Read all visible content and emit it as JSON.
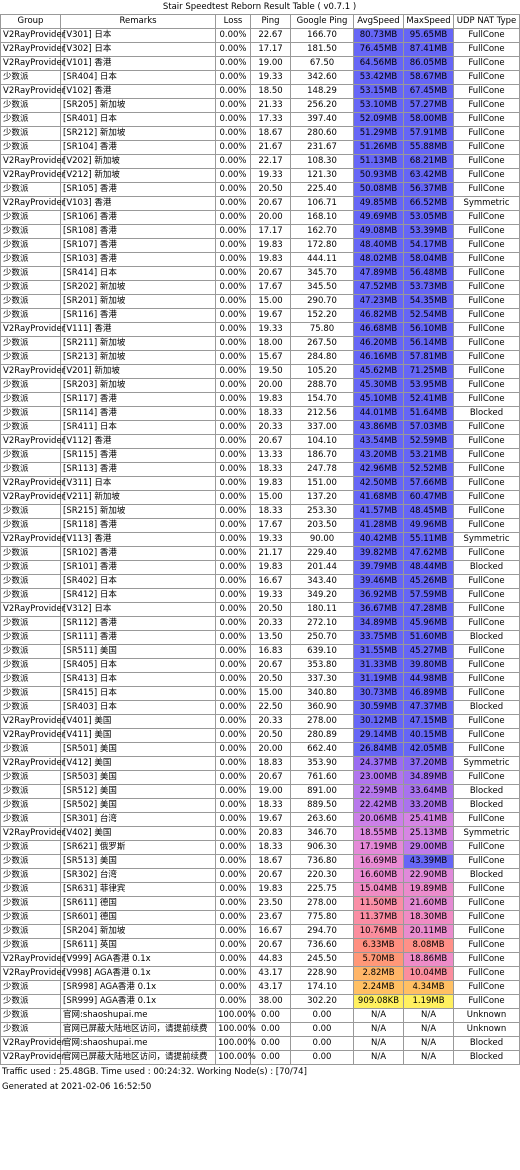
{
  "table": {
    "title": "Stair Speedtest Reborn Result Table ( v0.7.1 )",
    "header": [
      "Group",
      "Remarks",
      "Loss",
      "Ping",
      "Google Ping",
      "AvgSpeed",
      "MaxSpeed",
      "UDP NAT Type"
    ],
    "rows": [
      [
        "V2RayProvider",
        "[V301] 日本",
        "0.00%",
        "22.67",
        "166.70",
        "80.73MB",
        "95.65MB",
        "FullCone"
      ],
      [
        "V2RayProvider",
        "[V302] 日本",
        "0.00%",
        "17.17",
        "181.50",
        "76.45MB",
        "87.41MB",
        "FullCone"
      ],
      [
        "V2RayProvider",
        "[V101] 香港",
        "0.00%",
        "19.00",
        "67.50",
        "64.56MB",
        "86.05MB",
        "FullCone"
      ],
      [
        "少数派",
        "[SR404] 日本",
        "0.00%",
        "19.33",
        "342.60",
        "53.42MB",
        "58.67MB",
        "FullCone"
      ],
      [
        "V2RayProvider",
        "[V102] 香港",
        "0.00%",
        "18.50",
        "148.29",
        "53.15MB",
        "67.45MB",
        "FullCone"
      ],
      [
        "少数派",
        "[SR205] 新加坡",
        "0.00%",
        "21.33",
        "256.20",
        "53.10MB",
        "57.27MB",
        "FullCone"
      ],
      [
        "少数派",
        "[SR401] 日本",
        "0.00%",
        "17.33",
        "397.40",
        "52.09MB",
        "58.00MB",
        "FullCone"
      ],
      [
        "少数派",
        "[SR212] 新加坡",
        "0.00%",
        "18.67",
        "280.60",
        "51.29MB",
        "57.91MB",
        "FullCone"
      ],
      [
        "少数派",
        "[SR104] 香港",
        "0.00%",
        "21.67",
        "231.67",
        "51.26MB",
        "55.88MB",
        "FullCone"
      ],
      [
        "V2RayProvider",
        "[V202] 新加坡",
        "0.00%",
        "22.17",
        "108.30",
        "51.13MB",
        "68.21MB",
        "FullCone"
      ],
      [
        "V2RayProvider",
        "[V212] 新加坡",
        "0.00%",
        "19.33",
        "121.30",
        "50.93MB",
        "63.42MB",
        "FullCone"
      ],
      [
        "少数派",
        "[SR105] 香港",
        "0.00%",
        "20.50",
        "225.40",
        "50.08MB",
        "56.37MB",
        "FullCone"
      ],
      [
        "V2RayProvider",
        "[V103] 香港",
        "0.00%",
        "20.67",
        "106.71",
        "49.85MB",
        "66.52MB",
        "Symmetric"
      ],
      [
        "少数派",
        "[SR106] 香港",
        "0.00%",
        "20.00",
        "168.10",
        "49.69MB",
        "53.05MB",
        "FullCone"
      ],
      [
        "少数派",
        "[SR108] 香港",
        "0.00%",
        "17.17",
        "162.70",
        "49.08MB",
        "53.39MB",
        "FullCone"
      ],
      [
        "少数派",
        "[SR107] 香港",
        "0.00%",
        "19.83",
        "172.80",
        "48.40MB",
        "54.17MB",
        "FullCone"
      ],
      [
        "少数派",
        "[SR103] 香港",
        "0.00%",
        "19.83",
        "444.11",
        "48.02MB",
        "58.04MB",
        "FullCone"
      ],
      [
        "少数派",
        "[SR414] 日本",
        "0.00%",
        "20.67",
        "345.70",
        "47.89MB",
        "56.48MB",
        "FullCone"
      ],
      [
        "少数派",
        "[SR202] 新加坡",
        "0.00%",
        "17.67",
        "345.50",
        "47.52MB",
        "53.73MB",
        "FullCone"
      ],
      [
        "少数派",
        "[SR201] 新加坡",
        "0.00%",
        "15.00",
        "290.70",
        "47.23MB",
        "54.35MB",
        "FullCone"
      ],
      [
        "少数派",
        "[SR116] 香港",
        "0.00%",
        "19.67",
        "152.20",
        "46.82MB",
        "52.54MB",
        "FullCone"
      ],
      [
        "V2RayProvider",
        "[V111] 香港",
        "0.00%",
        "19.33",
        "75.80",
        "46.68MB",
        "56.10MB",
        "FullCone"
      ],
      [
        "少数派",
        "[SR211] 新加坡",
        "0.00%",
        "18.00",
        "267.50",
        "46.20MB",
        "56.14MB",
        "FullCone"
      ],
      [
        "少数派",
        "[SR213] 新加坡",
        "0.00%",
        "15.67",
        "284.80",
        "46.16MB",
        "57.81MB",
        "FullCone"
      ],
      [
        "V2RayProvider",
        "[V201] 新加坡",
        "0.00%",
        "19.50",
        "105.20",
        "45.62MB",
        "71.25MB",
        "FullCone"
      ],
      [
        "少数派",
        "[SR203] 新加坡",
        "0.00%",
        "20.00",
        "288.70",
        "45.30MB",
        "53.95MB",
        "FullCone"
      ],
      [
        "少数派",
        "[SR117] 香港",
        "0.00%",
        "19.83",
        "154.70",
        "45.10MB",
        "52.41MB",
        "FullCone"
      ],
      [
        "少数派",
        "[SR114] 香港",
        "0.00%",
        "18.33",
        "212.56",
        "44.01MB",
        "51.64MB",
        "Blocked"
      ],
      [
        "少数派",
        "[SR411] 日本",
        "0.00%",
        "20.33",
        "337.00",
        "43.86MB",
        "57.03MB",
        "FullCone"
      ],
      [
        "V2RayProvider",
        "[V112] 香港",
        "0.00%",
        "20.67",
        "104.10",
        "43.54MB",
        "52.59MB",
        "FullCone"
      ],
      [
        "少数派",
        "[SR115] 香港",
        "0.00%",
        "13.33",
        "186.70",
        "43.20MB",
        "53.21MB",
        "FullCone"
      ],
      [
        "少数派",
        "[SR113] 香港",
        "0.00%",
        "18.33",
        "247.78",
        "42.96MB",
        "52.52MB",
        "FullCone"
      ],
      [
        "V2RayProvider",
        "[V311] 日本",
        "0.00%",
        "19.83",
        "151.00",
        "42.50MB",
        "57.66MB",
        "FullCone"
      ],
      [
        "V2RayProvider",
        "[V211] 新加坡",
        "0.00%",
        "15.00",
        "137.20",
        "41.68MB",
        "60.47MB",
        "FullCone"
      ],
      [
        "少数派",
        "[SR215] 新加坡",
        "0.00%",
        "18.33",
        "253.30",
        "41.57MB",
        "48.45MB",
        "FullCone"
      ],
      [
        "少数派",
        "[SR118] 香港",
        "0.00%",
        "17.67",
        "203.50",
        "41.28MB",
        "49.96MB",
        "FullCone"
      ],
      [
        "V2RayProvider",
        "[V113] 香港",
        "0.00%",
        "19.33",
        "90.00",
        "40.42MB",
        "55.11MB",
        "Symmetric"
      ],
      [
        "少数派",
        "[SR102] 香港",
        "0.00%",
        "21.17",
        "229.40",
        "39.82MB",
        "47.62MB",
        "FullCone"
      ],
      [
        "少数派",
        "[SR101] 香港",
        "0.00%",
        "19.83",
        "201.44",
        "39.79MB",
        "48.44MB",
        "Blocked"
      ],
      [
        "少数派",
        "[SR402] 日本",
        "0.00%",
        "16.67",
        "343.40",
        "39.46MB",
        "45.26MB",
        "FullCone"
      ],
      [
        "少数派",
        "[SR412] 日本",
        "0.00%",
        "19.33",
        "349.20",
        "36.92MB",
        "57.59MB",
        "FullCone"
      ],
      [
        "V2RayProvider",
        "[V312] 日本",
        "0.00%",
        "20.50",
        "180.11",
        "36.67MB",
        "47.28MB",
        "FullCone"
      ],
      [
        "少数派",
        "[SR112] 香港",
        "0.00%",
        "20.33",
        "272.10",
        "34.89MB",
        "45.96MB",
        "FullCone"
      ],
      [
        "少数派",
        "[SR111] 香港",
        "0.00%",
        "13.50",
        "250.70",
        "33.75MB",
        "51.60MB",
        "Blocked"
      ],
      [
        "少数派",
        "[SR511] 美国",
        "0.00%",
        "16.83",
        "639.10",
        "31.55MB",
        "45.27MB",
        "FullCone"
      ],
      [
        "少数派",
        "[SR405] 日本",
        "0.00%",
        "20.67",
        "353.80",
        "31.33MB",
        "39.80MB",
        "FullCone"
      ],
      [
        "少数派",
        "[SR413] 日本",
        "0.00%",
        "20.50",
        "337.30",
        "31.19MB",
        "44.98MB",
        "FullCone"
      ],
      [
        "少数派",
        "[SR415] 日本",
        "0.00%",
        "15.00",
        "340.80",
        "30.73MB",
        "46.89MB",
        "FullCone"
      ],
      [
        "少数派",
        "[SR403] 日本",
        "0.00%",
        "22.50",
        "360.90",
        "30.59MB",
        "47.37MB",
        "Blocked"
      ],
      [
        "V2RayProvider",
        "[V401] 美国",
        "0.00%",
        "20.33",
        "278.00",
        "30.12MB",
        "47.15MB",
        "FullCone"
      ],
      [
        "V2RayProvider",
        "[V411] 美国",
        "0.00%",
        "20.50",
        "280.89",
        "29.14MB",
        "40.15MB",
        "FullCone"
      ],
      [
        "少数派",
        "[SR501] 美国",
        "0.00%",
        "20.00",
        "662.40",
        "26.84MB",
        "42.05MB",
        "FullCone"
      ],
      [
        "V2RayProvider",
        "[V412] 美国",
        "0.00%",
        "18.83",
        "353.90",
        "24.37MB",
        "37.20MB",
        "Symmetric"
      ],
      [
        "少数派",
        "[SR503] 美国",
        "0.00%",
        "20.67",
        "761.60",
        "23.00MB",
        "34.89MB",
        "FullCone"
      ],
      [
        "少数派",
        "[SR512] 美国",
        "0.00%",
        "19.00",
        "891.00",
        "22.59MB",
        "33.64MB",
        "Blocked"
      ],
      [
        "少数派",
        "[SR502] 美国",
        "0.00%",
        "18.33",
        "889.50",
        "22.42MB",
        "33.20MB",
        "Blocked"
      ],
      [
        "少数派",
        "[SR301] 台湾",
        "0.00%",
        "19.67",
        "263.60",
        "20.06MB",
        "25.41MB",
        "FullCone"
      ],
      [
        "V2RayProvider",
        "[V402] 美国",
        "0.00%",
        "20.83",
        "346.70",
        "18.55MB",
        "25.13MB",
        "Symmetric"
      ],
      [
        "少数派",
        "[SR621] 俄罗斯",
        "0.00%",
        "18.33",
        "906.30",
        "17.19MB",
        "29.00MB",
        "FullCone"
      ],
      [
        "少数派",
        "[SR513] 美国",
        "0.00%",
        "18.67",
        "736.80",
        "16.69MB",
        "43.39MB",
        "FullCone"
      ],
      [
        "少数派",
        "[SR302] 台湾",
        "0.00%",
        "20.67",
        "220.30",
        "16.60MB",
        "22.90MB",
        "Blocked"
      ],
      [
        "少数派",
        "[SR631] 菲律宾",
        "0.00%",
        "19.83",
        "225.75",
        "15.04MB",
        "19.89MB",
        "FullCone"
      ],
      [
        "少数派",
        "[SR611] 德国",
        "0.00%",
        "23.50",
        "278.00",
        "11.50MB",
        "21.60MB",
        "FullCone"
      ],
      [
        "少数派",
        "[SR601] 德国",
        "0.00%",
        "23.67",
        "775.80",
        "11.37MB",
        "18.30MB",
        "FullCone"
      ],
      [
        "少数派",
        "[SR204] 新加坡",
        "0.00%",
        "16.67",
        "294.70",
        "10.76MB",
        "20.11MB",
        "FullCone"
      ],
      [
        "少数派",
        "[SR611] 英国",
        "0.00%",
        "20.67",
        "736.60",
        "6.33MB",
        "8.08MB",
        "FullCone"
      ],
      [
        "V2RayProvider",
        "[V999] AGA香港 0.1x",
        "0.00%",
        "44.83",
        "245.50",
        "5.70MB",
        "18.86MB",
        "FullCone"
      ],
      [
        "V2RayProvider",
        "[V998] AGA香港 0.1x",
        "0.00%",
        "43.17",
        "228.90",
        "2.82MB",
        "10.04MB",
        "FullCone"
      ],
      [
        "少数派",
        "[SR998] AGA香港 0.1x",
        "0.00%",
        "43.17",
        "174.10",
        "2.24MB",
        "4.34MB",
        "FullCone"
      ],
      [
        "少数派",
        "[SR999] AGA香港 0.1x",
        "0.00%",
        "38.00",
        "302.20",
        "909.08KB",
        "1.19MB",
        "FullCone"
      ],
      [
        "少数派",
        "官网:shaoshupai.me",
        "100.00%",
        "0.00",
        "0.00",
        "N/A",
        "N/A",
        "Unknown"
      ],
      [
        "少数派",
        "官网已屏蔽大陆地区访问，请提前续费",
        "100.00%",
        "0.00",
        "0.00",
        "N/A",
        "N/A",
        "Unknown"
      ],
      [
        "V2RayProvider",
        "官网:shaoshupai.me",
        "100.00%",
        "0.00",
        "0.00",
        "N/A",
        "N/A",
        "Blocked"
      ],
      [
        "V2RayProvider",
        "官网已屏蔽大陆地区访问，请提前续费",
        "100.00%",
        "0.00",
        "0.00",
        "N/A",
        "N/A",
        "Blocked"
      ]
    ],
    "speed_colors": [
      [
        "#6666f6",
        "#6666f6"
      ],
      [
        "#6666f6",
        "#6666f6"
      ],
      [
        "#6666f6",
        "#6666f6"
      ],
      [
        "#6666f6",
        "#6666f6"
      ],
      [
        "#6666f6",
        "#6666f6"
      ],
      [
        "#6666f6",
        "#6666f6"
      ],
      [
        "#6666f6",
        "#6666f6"
      ],
      [
        "#6666f6",
        "#6666f6"
      ],
      [
        "#6666f6",
        "#6666f6"
      ],
      [
        "#6666f6",
        "#6666f6"
      ],
      [
        "#6666f6",
        "#6666f6"
      ],
      [
        "#6666f6",
        "#6666f6"
      ],
      [
        "#6666f6",
        "#6666f6"
      ],
      [
        "#6666f6",
        "#6666f6"
      ],
      [
        "#6666f6",
        "#6666f6"
      ],
      [
        "#6666f6",
        "#6666f6"
      ],
      [
        "#6666f6",
        "#6666f6"
      ],
      [
        "#6666f6",
        "#6666f6"
      ],
      [
        "#6666f6",
        "#6666f6"
      ],
      [
        "#6666f6",
        "#6666f6"
      ],
      [
        "#6666f6",
        "#6666f6"
      ],
      [
        "#6666f6",
        "#6666f6"
      ],
      [
        "#6666f6",
        "#6666f6"
      ],
      [
        "#6666f6",
        "#6666f6"
      ],
      [
        "#6666f6",
        "#6666f6"
      ],
      [
        "#6666f6",
        "#6666f6"
      ],
      [
        "#6666f6",
        "#6666f6"
      ],
      [
        "#6666f6",
        "#6666f6"
      ],
      [
        "#6666f6",
        "#6666f6"
      ],
      [
        "#6666f6",
        "#6666f6"
      ],
      [
        "#6666f6",
        "#6666f6"
      ],
      [
        "#6666f6",
        "#6666f6"
      ],
      [
        "#6666f6",
        "#6666f6"
      ],
      [
        "#6666f6",
        "#6666f6"
      ],
      [
        "#6666f6",
        "#6666f6"
      ],
      [
        "#6666f6",
        "#6666f6"
      ],
      [
        "#6666f6",
        "#6666f6"
      ],
      [
        "#6666f6",
        "#6666f6"
      ],
      [
        "#6666f6",
        "#6666f6"
      ],
      [
        "#6666f6",
        "#6666f6"
      ],
      [
        "#6666f6",
        "#6666f6"
      ],
      [
        "#6666f6",
        "#6666f6"
      ],
      [
        "#6666f6",
        "#6666f6"
      ],
      [
        "#6666f6",
        "#6666f6"
      ],
      [
        "#6666f6",
        "#6666f6"
      ],
      [
        "#6666f6",
        "#6666f6"
      ],
      [
        "#6666f6",
        "#6666f6"
      ],
      [
        "#6666f6",
        "#6666f6"
      ],
      [
        "#6666f6",
        "#6666f6"
      ],
      [
        "#6666f6",
        "#6666f6"
      ],
      [
        "#6666f6",
        "#6666f6"
      ],
      [
        "#6666f6",
        "#6666f6"
      ],
      [
        "#9a6cf2",
        "#8c6af3"
      ],
      [
        "#b175ee",
        "#a070f0"
      ],
      [
        "#b577ec",
        "#a872ee"
      ],
      [
        "#b878ec",
        "#aa73ee"
      ],
      [
        "#cc80e8",
        "#d585e4"
      ],
      [
        "#dd88e0",
        "#d686e3"
      ],
      [
        "#e58ad8",
        "#c07ce9"
      ],
      [
        "#e98bd4",
        "#6666f6"
      ],
      [
        "#ea8bd2",
        "#e08ada"
      ],
      [
        "#f08cc4",
        "#eb8ccc"
      ],
      [
        "#fa8ea6",
        "#e58bd4"
      ],
      [
        "#fa8ea4",
        "#f08cc4"
      ],
      [
        "#fb8e9e",
        "#ea8cce"
      ],
      [
        "#ff8f80",
        "#ff9088"
      ],
      [
        "#ff9878",
        "#ee8cc8"
      ],
      [
        "#ffb568",
        "#fb8e9e"
      ],
      [
        "#ffc064",
        "#ffc064"
      ],
      [
        "#fff060",
        "#fff060"
      ],
      [
        "#ffffff",
        "#ffffff"
      ],
      [
        "#ffffff",
        "#ffffff"
      ],
      [
        "#ffffff",
        "#ffffff"
      ],
      [
        "#ffffff",
        "#ffffff"
      ]
    ],
    "footer": [
      "Traffic used : 25.48GB. Time used : 00:24:32. Working Node(s) : [70/74]",
      "Generated at 2021-02-06 16:52:50"
    ]
  }
}
